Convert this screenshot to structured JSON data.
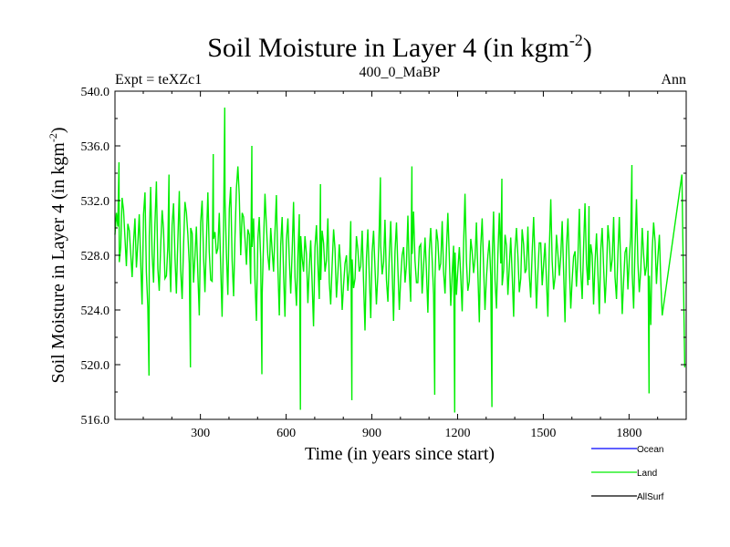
{
  "chart_data": {
    "type": "line",
    "title": "Soil Moisture in Layer 4 (in kgm",
    "title_sup": "-2",
    "title_close": ")",
    "subtitle_left": "Expt = teXZc1",
    "subtitle_center": "400_0_MaBP",
    "subtitle_right": "Ann",
    "xlabel": "Time (in years since start)",
    "ylabel": "Soil Moisture in Layer 4 (in kgm",
    "ylabel_sup": "-2",
    "ylabel_close": ")",
    "xlim": [
      1,
      2000
    ],
    "ylim": [
      516.0,
      540.0
    ],
    "x_ticks": [
      300,
      600,
      900,
      1200,
      1500,
      1800
    ],
    "x_tick_labels": [
      "300",
      "600",
      "900",
      "1200",
      "1500",
      "1800"
    ],
    "y_ticks": [
      516,
      520,
      524,
      528,
      532,
      536,
      540
    ],
    "y_tick_labels": [
      "516.0",
      "520.0",
      "524.0",
      "528.0",
      "532.0",
      "536.0",
      "540.0"
    ],
    "legend_position": "bottom-right",
    "series": [
      {
        "name": "Land",
        "color": "#00ee00",
        "x_start": 1,
        "x_step": 10,
        "values": [
          529.5,
          530.1,
          528.6,
          531.3,
          527.2,
          529.8,
          526.4,
          530.7,
          528.9,
          527.5,
          531.0,
          526.8,
          529.4,
          528.1,
          530.3,
          527.0,
          528.7,
          529.9,
          526.5,
          528.4,
          530.2,
          527.8,
          529.1,
          526.9,
          528.8,
          531.1,
          527.4,
          529.6,
          528.0,
          526.7,
          530.4,
          527.9,
          529.0,
          528.3,
          526.1,
          529.7,
          528.5,
          527.1,
          530.0,
          528.2,
          531.4,
          527.6,
          529.3,
          534.5,
          528.0,
          530.8,
          527.3,
          529.5,
          528.6,
          526.3,
          529.2,
          527.7,
          528.9,
          530.1,
          526.9,
          528.4,
          529.8,
          527.2,
          528.7,
          526.6,
          529.1,
          527.8,
          528.3,
          526.4,
          527.9,
          529.4,
          526.8,
          528.1,
          527.0,
          525.9,
          528.6,
          527.4,
          526.2,
          528.9,
          527.6,
          526.0,
          527.3,
          528.5,
          526.7,
          527.1,
          525.8,
          528.0,
          526.9,
          527.7,
          526.3,
          528.4,
          527.2,
          526.1,
          527.8,
          526.5,
          528.2,
          527.0,
          526.6,
          528.7,
          527.5,
          526.2,
          527.9,
          526.8,
          528.3,
          527.1,
          526.4,
          528.6,
          527.3,
          526.7,
          528.1,
          527.6,
          526.0,
          528.8,
          527.2,
          526.9,
          528.4,
          527.7,
          526.3,
          529.0,
          527.4,
          526.8,
          528.5,
          527.9,
          526.6,
          528.2,
          527.0,
          526.5,
          528.9,
          527.5,
          526.1,
          528.3,
          527.8,
          526.7,
          528.6,
          527.1,
          526.4,
          529.1,
          527.6,
          526.2,
          528.0,
          527.4,
          526.9,
          528.7,
          527.2,
          526.6,
          528.4,
          527.9,
          526.3,
          528.8,
          527.0,
          526.5,
          528.2,
          527.7,
          526.8,
          528.9,
          527.3,
          526.1,
          528.5,
          527.6,
          526.4,
          528.1,
          527.9,
          526.7,
          528.6,
          527.2,
          526.3,
          528.3,
          527.8,
          526.9,
          528.7,
          527.4,
          526.2,
          528.0,
          527.5,
          526.8,
          528.4,
          527.1,
          526.6,
          528.9,
          527.7,
          526.4,
          528.2,
          527.3,
          526.1,
          528.6,
          527.8,
          526.7,
          528.5,
          527.4,
          526.9,
          528.1,
          527.2,
          526.5,
          528.3,
          529.0,
          527.9,
          526.2
        ]
      }
    ],
    "spikes": [
      {
        "x": 15,
        "value": 534.8
      },
      {
        "x": 120,
        "value": 519.2
      },
      {
        "x": 190,
        "value": 533.9
      },
      {
        "x": 265,
        "value": 519.8
      },
      {
        "x": 345,
        "value": 535.4
      },
      {
        "x": 385,
        "value": 538.8
      },
      {
        "x": 480,
        "value": 536.0
      },
      {
        "x": 515,
        "value": 519.3
      },
      {
        "x": 650,
        "value": 516.7
      },
      {
        "x": 720,
        "value": 533.2
      },
      {
        "x": 830,
        "value": 517.4
      },
      {
        "x": 930,
        "value": 533.7
      },
      {
        "x": 1040,
        "value": 534.5
      },
      {
        "x": 1120,
        "value": 517.8
      },
      {
        "x": 1190,
        "value": 516.5
      },
      {
        "x": 1320,
        "value": 516.9
      },
      {
        "x": 1355,
        "value": 533.6
      },
      {
        "x": 1660,
        "value": 531.6
      },
      {
        "x": 1810,
        "value": 534.6
      },
      {
        "x": 1870,
        "value": 517.9
      },
      {
        "x": 1985,
        "value": 533.9
      },
      {
        "x": 1995,
        "value": 519.8
      }
    ],
    "legend": [
      {
        "name": "Ocean",
        "color": "#0000ff"
      },
      {
        "name": "Land",
        "color": "#00ee00"
      },
      {
        "name": "AllSurf",
        "color": "#000000"
      }
    ]
  }
}
